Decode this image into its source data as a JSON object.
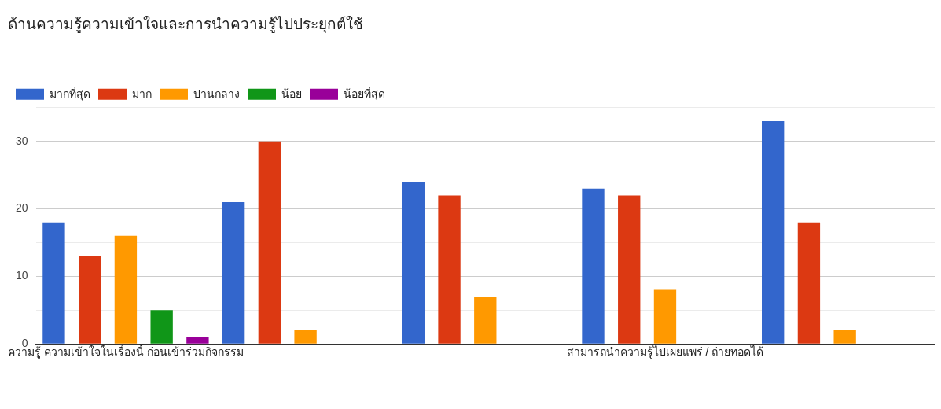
{
  "chart_data": {
    "type": "bar",
    "title": "ด้านความรู้ความเข้าใจและการนำความรู้ไปประยุกต์ใช้",
    "categories": [
      "ความรู้ ความเข้าใจในเรื่องนี้ ก่อนเข้าร่วมกิจกรรม",
      null,
      null,
      "สามารถนำความรู้ไปเผยแพร่ / ถ่ายทอดได้",
      null
    ],
    "series": [
      {
        "name": "มากที่สุด",
        "color": "#3366cc",
        "values": [
          18,
          21,
          24,
          23,
          33
        ]
      },
      {
        "name": "มาก",
        "color": "#dc3912",
        "values": [
          13,
          30,
          22,
          22,
          18
        ]
      },
      {
        "name": "ปานกลาง",
        "color": "#ff9900",
        "values": [
          16,
          2,
          7,
          8,
          2
        ]
      },
      {
        "name": "น้อย",
        "color": "#109618",
        "values": [
          5,
          0,
          0,
          0,
          0
        ]
      },
      {
        "name": "น้อยที่สุด",
        "color": "#990099",
        "values": [
          1,
          0,
          0,
          0,
          0
        ]
      }
    ],
    "ylim": [
      0,
      35
    ],
    "yticks": [
      0,
      {
        "value": 5,
        "label": null
      },
      10,
      {
        "value": 15,
        "label": null
      },
      20,
      {
        "value": 25,
        "label": null
      },
      30,
      {
        "value": 35,
        "label": null
      }
    ],
    "grid": "y",
    "legend": "top left"
  }
}
